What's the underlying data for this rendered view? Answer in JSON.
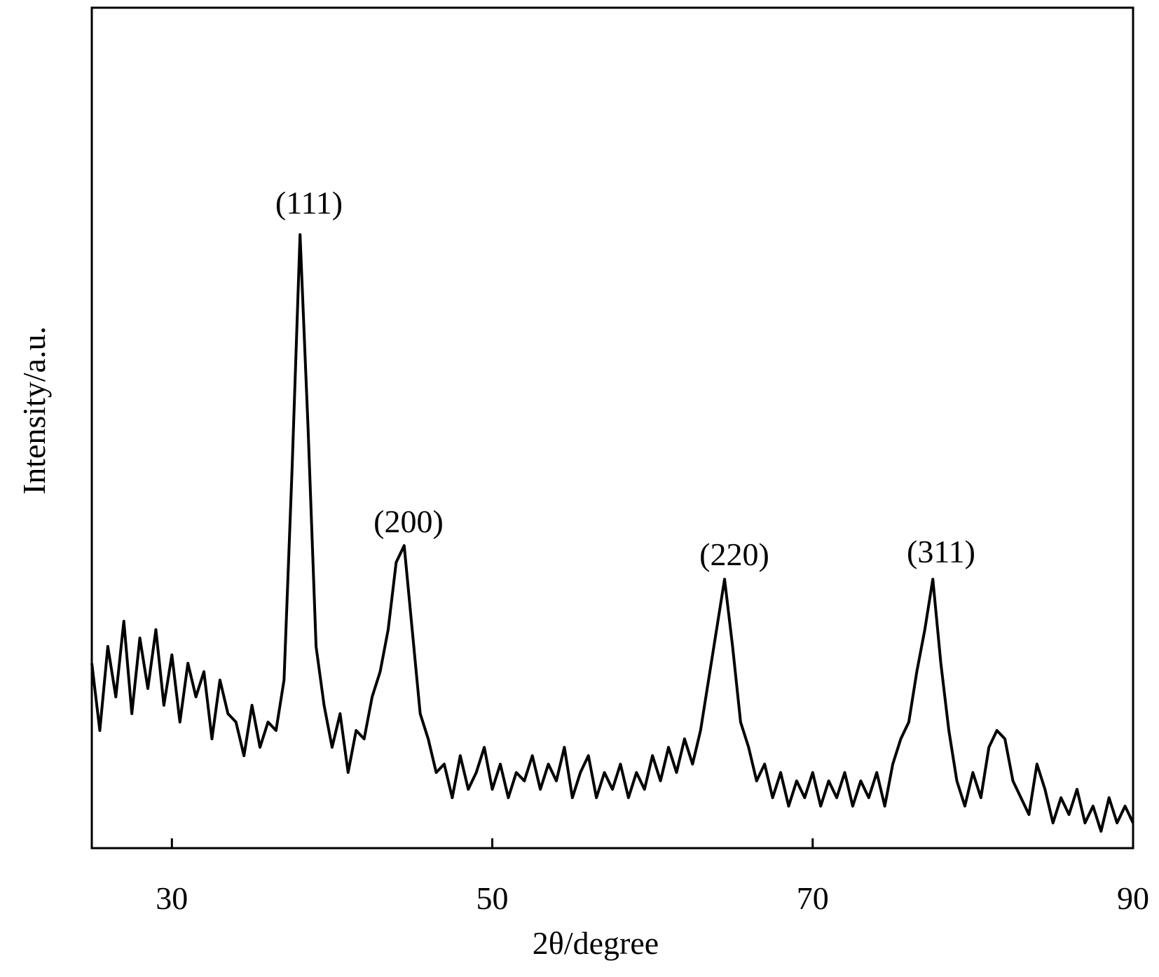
{
  "chart_data": {
    "type": "line",
    "x_label": "2θ/degree",
    "y_label": "Intensity/a.u.",
    "xlim": [
      25,
      90
    ],
    "ylim": [
      0,
      100
    ],
    "xticks": [
      30,
      50,
      70,
      90
    ],
    "annotations": [
      "(111)",
      "(200)",
      "(220)",
      "(311)"
    ],
    "series": [
      {
        "color": "#000000",
        "x": [
          25,
          25.5,
          26,
          26.5,
          27,
          27.5,
          28,
          28.5,
          29,
          29.5,
          30,
          30.5,
          31,
          31.5,
          32,
          32.5,
          33,
          33.5,
          34,
          34.5,
          35,
          35.5,
          36,
          36.5,
          37,
          37.5,
          38,
          38.5,
          39,
          39.5,
          40,
          40.5,
          41,
          41.5,
          42,
          42.5,
          43,
          43.5,
          44,
          44.5,
          45,
          45.5,
          46,
          46.5,
          47,
          47.5,
          48,
          48.5,
          49,
          49.5,
          50,
          50.5,
          51,
          51.5,
          52,
          52.5,
          53,
          53.5,
          54,
          54.5,
          55,
          55.5,
          56,
          56.5,
          57,
          57.5,
          58,
          58.5,
          59,
          59.5,
          60,
          60.5,
          61,
          61.5,
          62,
          62.5,
          63,
          63.5,
          64,
          64.5,
          65,
          65.5,
          66,
          66.5,
          67,
          67.5,
          68,
          68.5,
          69,
          69.5,
          70,
          70.5,
          71,
          71.5,
          72,
          72.5,
          73,
          73.5,
          74,
          74.5,
          75,
          75.5,
          76,
          76.5,
          77,
          77.5,
          78,
          78.5,
          79,
          79.5,
          80,
          80.5,
          81,
          81.5,
          82,
          82.5,
          83,
          83.5,
          84,
          84.5,
          85,
          85.5,
          86,
          86.5,
          87,
          87.5,
          88,
          88.5,
          89,
          89.5,
          90
        ],
        "values": [
          22,
          14,
          24,
          18,
          27,
          16,
          25,
          19,
          26,
          17,
          23,
          15,
          22,
          18,
          21,
          13,
          20,
          16,
          15,
          11,
          17,
          12,
          15,
          14,
          20,
          45,
          73,
          50,
          24,
          17,
          12,
          16,
          9,
          14,
          13,
          18,
          21,
          26,
          34,
          36,
          26,
          16,
          13,
          9,
          10,
          6,
          11,
          7,
          9,
          12,
          7,
          10,
          6,
          9,
          8,
          11,
          7,
          10,
          8,
          12,
          6,
          9,
          11,
          6,
          9,
          7,
          10,
          6,
          9,
          7,
          11,
          8,
          12,
          9,
          13,
          10,
          14,
          20,
          26,
          32,
          24,
          15,
          12,
          8,
          10,
          6,
          9,
          5,
          8,
          6,
          9,
          5,
          8,
          6,
          9,
          5,
          8,
          6,
          9,
          5,
          10,
          13,
          15,
          21,
          26,
          32,
          22,
          14,
          8,
          5,
          9,
          6,
          12,
          14,
          13,
          8,
          6,
          4,
          10,
          7,
          3,
          6,
          4,
          7,
          3,
          5,
          2,
          6,
          3,
          5,
          3
        ]
      }
    ]
  }
}
